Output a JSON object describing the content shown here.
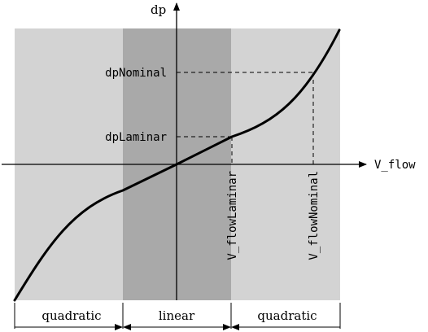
{
  "axes": {
    "x_label": "V_flow",
    "y_label": "dp"
  },
  "levels": {
    "dp_nominal": "dpNominal",
    "dp_laminar": "dpLaminar",
    "v_flow_laminar": "V_flowLaminar",
    "v_flow_nominal": "V_flowNominal"
  },
  "regions": {
    "left": "quadratic",
    "middle": "linear",
    "right": "quadratic"
  },
  "colors": {
    "outer_region": "#d3d3d3",
    "linear_region": "#a9a9a9",
    "curve": "#000000"
  }
}
